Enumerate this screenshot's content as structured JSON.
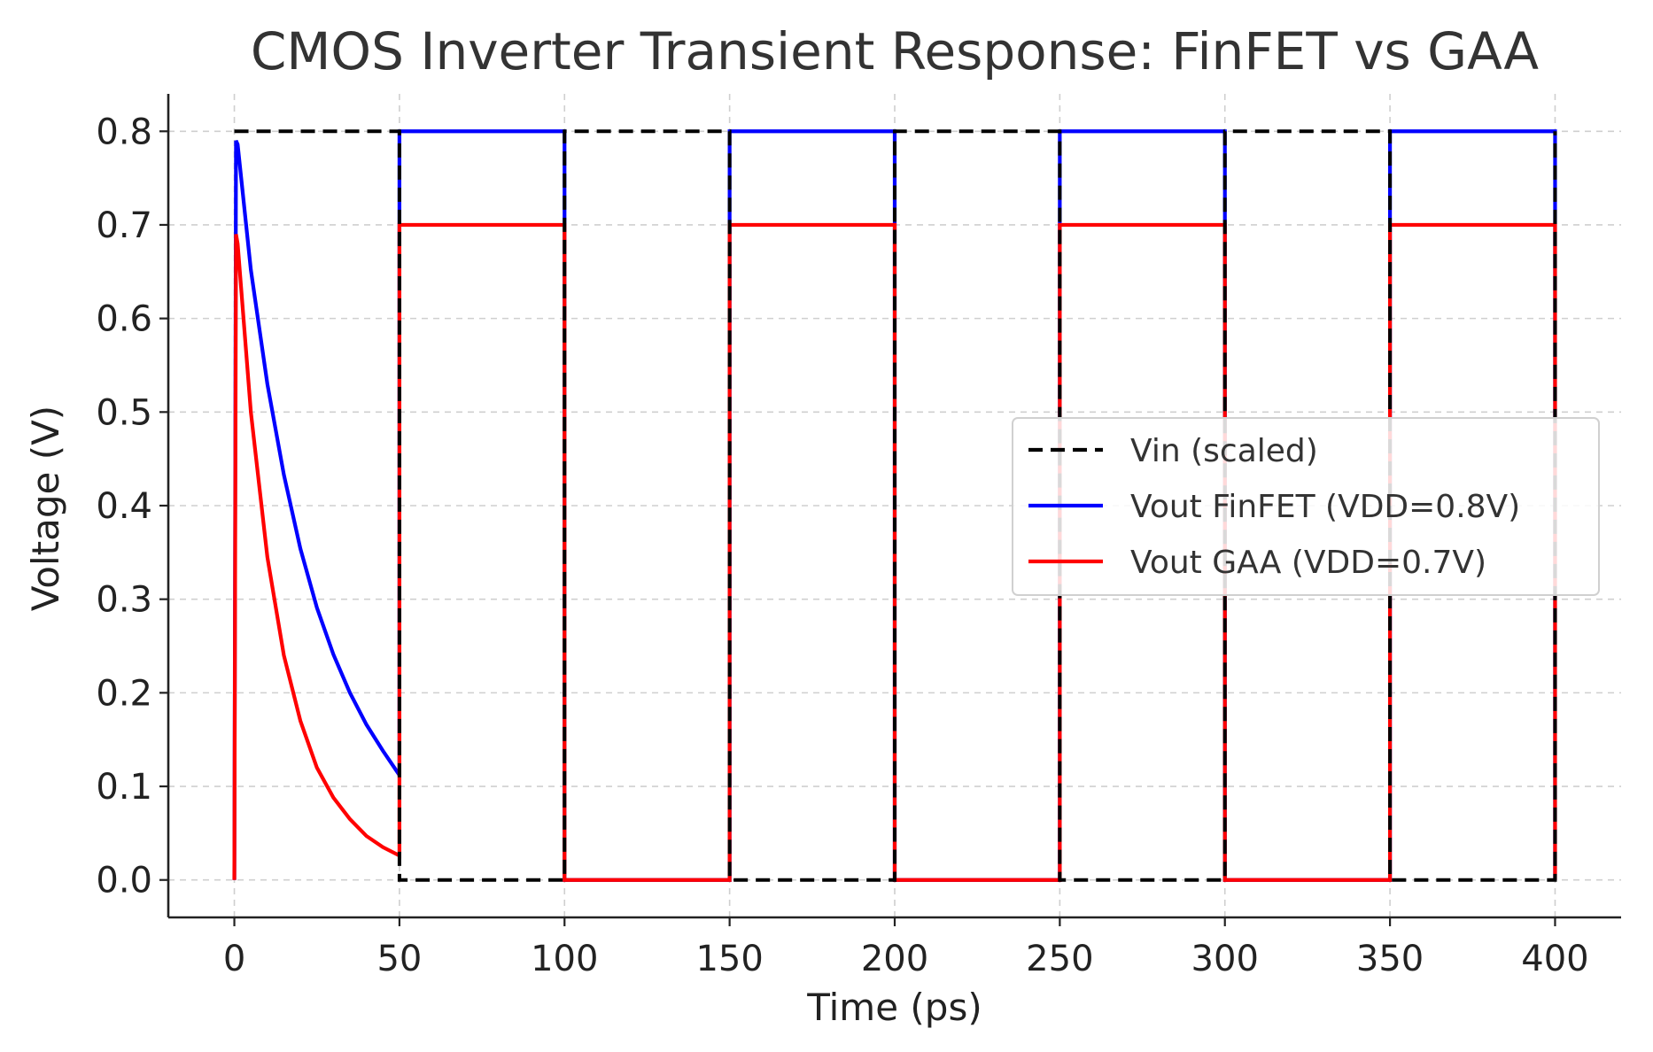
{
  "chart_data": {
    "type": "line",
    "title": "CMOS Inverter Transient Response: FinFET vs GAA",
    "xlabel": "Time (ps)",
    "ylabel": "Voltage (V)",
    "xlim": [
      -20,
      420
    ],
    "ylim": [
      -0.04,
      0.84
    ],
    "xticks": [
      0,
      50,
      100,
      150,
      200,
      250,
      300,
      350,
      400
    ],
    "yticks": [
      0.0,
      0.1,
      0.2,
      0.3,
      0.4,
      0.5,
      0.6,
      0.7,
      0.8
    ],
    "xtick_labels": [
      "0",
      "50",
      "100",
      "150",
      "200",
      "250",
      "300",
      "350",
      "400"
    ],
    "ytick_labels": [
      "0.0",
      "0.1",
      "0.2",
      "0.3",
      "0.4",
      "0.5",
      "0.6",
      "0.7",
      "0.8"
    ],
    "grid": true,
    "legend_position": "center-right",
    "series": [
      {
        "name": "Vin (scaled)",
        "color": "#000000",
        "dash": "dashed",
        "x": [
          0,
          50,
          50,
          100,
          100,
          150,
          150,
          200,
          200,
          250,
          250,
          300,
          300,
          350,
          350,
          400,
          400
        ],
        "y": [
          0.8,
          0.8,
          0.0,
          0.0,
          0.8,
          0.8,
          0.0,
          0.0,
          0.8,
          0.8,
          0.0,
          0.0,
          0.8,
          0.8,
          0.0,
          0.0,
          0.8
        ]
      },
      {
        "name": "Vout FinFET (VDD=0.8V)",
        "color": "#0000ff",
        "dash": "solid",
        "x": [
          0,
          0.5,
          1,
          5,
          10,
          15,
          20,
          25,
          30,
          35,
          40,
          45,
          50,
          50,
          100,
          100,
          150,
          150,
          200,
          200,
          250,
          250,
          300,
          300,
          350,
          350,
          400,
          400
        ],
        "y": [
          0.0,
          0.79,
          0.786,
          0.652,
          0.53,
          0.433,
          0.354,
          0.291,
          0.241,
          0.2,
          0.166,
          0.138,
          0.112,
          0.8,
          0.8,
          0.0,
          0.0,
          0.8,
          0.8,
          0.0,
          0.0,
          0.8,
          0.8,
          0.0,
          0.0,
          0.8,
          0.8,
          0.0
        ]
      },
      {
        "name": "Vout GAA (VDD=0.7V)",
        "color": "#ff0000",
        "dash": "solid",
        "x": [
          0,
          0.5,
          1,
          5,
          10,
          15,
          20,
          25,
          30,
          35,
          40,
          45,
          50,
          50,
          100,
          100,
          150,
          150,
          200,
          200,
          250,
          250,
          300,
          300,
          350,
          350,
          400,
          400
        ],
        "y": [
          0.0,
          0.69,
          0.68,
          0.5,
          0.345,
          0.24,
          0.17,
          0.12,
          0.088,
          0.065,
          0.047,
          0.035,
          0.026,
          0.7,
          0.7,
          0.0,
          0.0,
          0.7,
          0.7,
          0.0,
          0.0,
          0.7,
          0.7,
          0.0,
          0.0,
          0.7,
          0.7,
          0.0
        ]
      }
    ]
  }
}
